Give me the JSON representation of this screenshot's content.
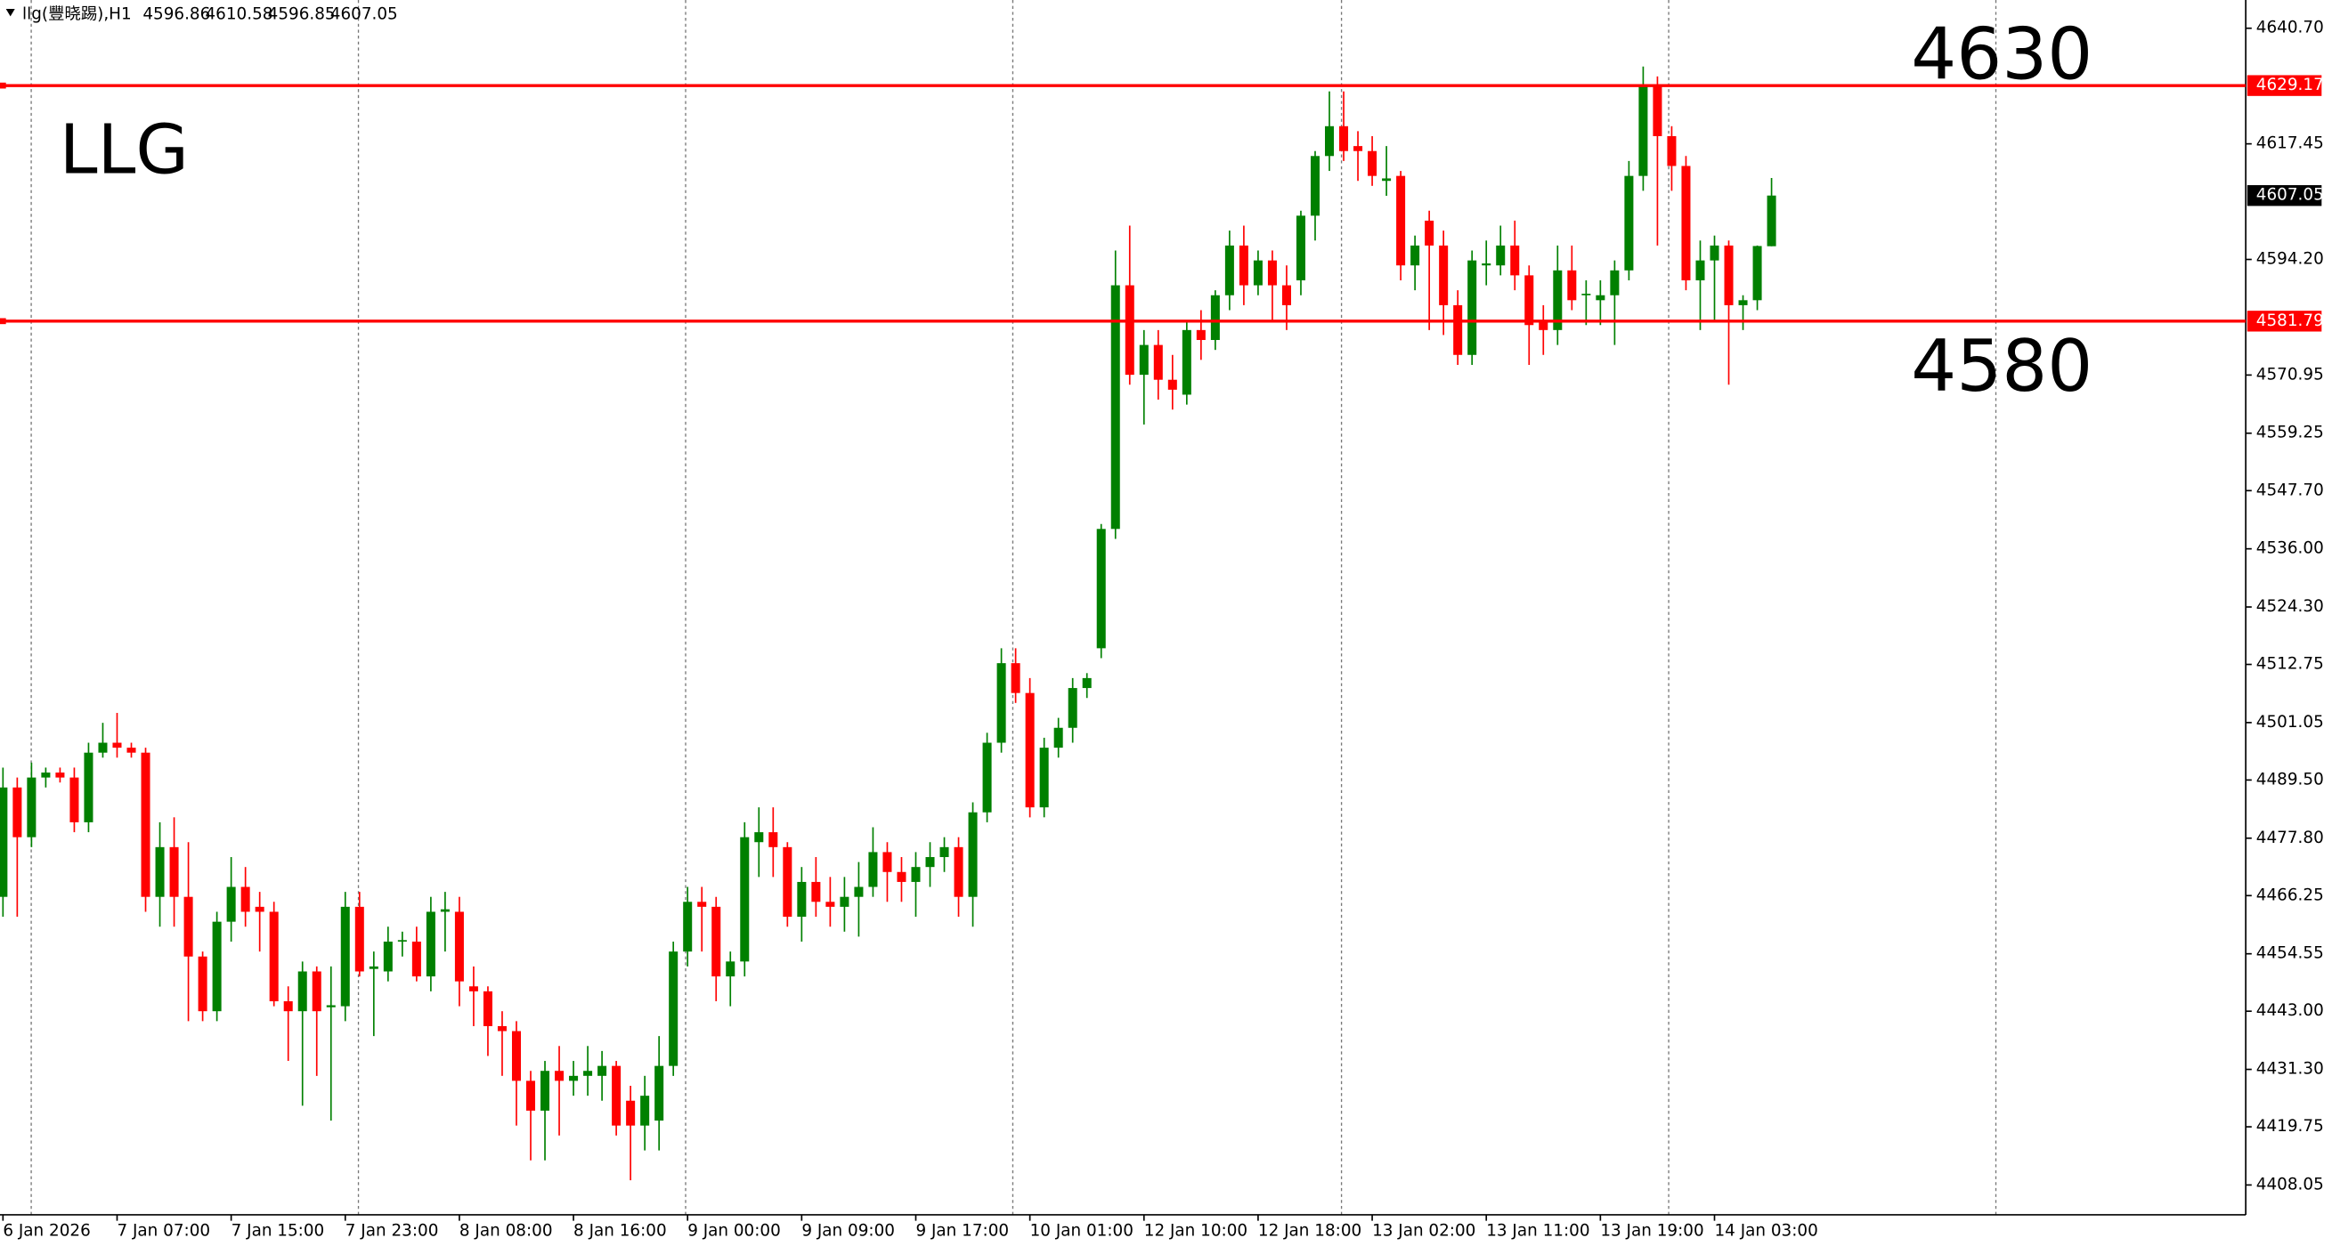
{
  "chart_data": {
    "type": "candlestick",
    "symbol": "llg(豐晓踢),H1",
    "annotations": [
      "LLG",
      "4630",
      "4580"
    ],
    "hlines": [
      4629.17,
      4581.79
    ],
    "hline_color": "#ff0000",
    "up_color": "#008000",
    "down_color": "#ff0000",
    "categories": [
      "6 Jan 2026",
      null,
      null,
      null,
      null,
      null,
      null,
      null,
      "7 Jan 07:00",
      null,
      null,
      null,
      null,
      null,
      null,
      null,
      "7 Jan 15:00",
      null,
      null,
      null,
      null,
      null,
      null,
      null,
      "7 Jan 23:00",
      null,
      null,
      null,
      null,
      null,
      null,
      null,
      "8 Jan 08:00",
      null,
      null,
      null,
      null,
      null,
      null,
      null,
      "8 Jan 16:00",
      null,
      null,
      null,
      null,
      null,
      null,
      null,
      "9 Jan 00:00",
      null,
      null,
      null,
      null,
      null,
      null,
      null,
      "9 Jan 09:00",
      null,
      null,
      null,
      null,
      null,
      null,
      null,
      "9 Jan 17:00",
      null,
      null,
      null,
      null,
      null,
      null,
      null,
      "10 Jan 01:00",
      null,
      null,
      null,
      null,
      null,
      null,
      null,
      "12 Jan 10:00",
      null,
      null,
      null,
      null,
      null,
      null,
      null,
      "12 Jan 18:00",
      null,
      null,
      null,
      null,
      null,
      null,
      null,
      "13 Jan 02:00",
      null,
      null,
      null,
      null,
      null,
      null,
      null,
      "13 Jan 11:00",
      null,
      null,
      null,
      null,
      null,
      null,
      null,
      "13 Jan 19:00",
      null,
      null,
      null,
      null,
      null,
      null,
      null,
      "14 Jan 03:00",
      null,
      null,
      null,
      null
    ],
    "open": [
      4466,
      4488,
      4478,
      4490,
      4491,
      4490,
      4481,
      4495,
      4497,
      4496,
      4495,
      4466,
      4476,
      4466,
      4454,
      4443,
      4461,
      4468,
      4464,
      4463,
      4445,
      4443,
      4451,
      4443.8,
      4444,
      4464,
      4451.5,
      4451,
      4457,
      4457,
      4450,
      4463,
      4463,
      4448,
      4447,
      4440,
      4439,
      4429,
      4423,
      4431,
      4429,
      4430,
      4430,
      4432,
      4425,
      4420,
      4421,
      4432,
      4455,
      4465,
      4464,
      4450,
      4453,
      4477,
      4479,
      4476,
      4462,
      4469,
      4465,
      4464,
      4466,
      4468,
      4475,
      4471,
      4469,
      4472,
      4474,
      4476,
      4466,
      4483,
      4497,
      4513,
      4507,
      4484,
      4496,
      4500,
      4508,
      4516,
      4540,
      4589,
      4571,
      4577,
      4570,
      4567,
      4580,
      4578,
      4587,
      4597,
      4589,
      4594,
      4589,
      4590,
      4603,
      4615,
      4621,
      4617,
      4616,
      4610,
      4611,
      4593,
      4602,
      4597,
      4585,
      4575,
      4593,
      4593,
      4597,
      4591,
      4582,
      4580,
      4592,
      4587,
      4586,
      4587,
      4592,
      4611,
      4629,
      4619,
      4613,
      4590,
      4594,
      4597,
      4585,
      4586,
      4596.86
    ],
    "high": [
      4492,
      4490,
      4493,
      4492,
      4492,
      4492,
      4497,
      4501,
      4503,
      4497,
      4496,
      4481,
      4482,
      4477,
      4455,
      4463,
      4474,
      4472,
      4467,
      4465,
      4448,
      4453,
      4452,
      4452,
      4467,
      4467,
      4455,
      4460,
      4459,
      4460,
      4466,
      4467,
      4466,
      4452,
      4448,
      4443,
      4441,
      4431,
      4433,
      4436,
      4433,
      4436,
      4435,
      4433,
      4428,
      4430,
      4438,
      4457,
      4468,
      4468,
      4466,
      4455,
      4481,
      4484,
      4484,
      4477,
      4472,
      4474,
      4470,
      4470,
      4473,
      4480,
      4477,
      4474,
      4475,
      4477,
      4478,
      4478,
      4485,
      4499,
      4516,
      4516,
      4510,
      4498,
      4502,
      4510,
      4511,
      4541,
      4596,
      4601,
      4580,
      4580,
      4575,
      4582,
      4584,
      4588,
      4600,
      4601,
      4596,
      4596,
      4593,
      4604,
      4616,
      4628,
      4628,
      4620,
      4619,
      4617,
      4612,
      4599,
      4604,
      4600,
      4588,
      4596,
      4598,
      4601,
      4602,
      4593,
      4585,
      4597,
      4597,
      4590,
      4590,
      4594,
      4614,
      4633,
      4631,
      4621,
      4615,
      4598,
      4599,
      4598,
      4587,
      4597,
      4610.58
    ],
    "low": [
      4462,
      4462,
      4476,
      4488,
      4489,
      4479,
      4479,
      4494,
      4494,
      4494,
      4463,
      4460,
      4460,
      4441,
      4441,
      4441,
      4457,
      4460,
      4455,
      4444,
      4433,
      4424,
      4430,
      4421,
      4441,
      4450,
      4438,
      4449,
      4454,
      4449,
      4447,
      4455,
      4444,
      4440,
      4434,
      4430,
      4420,
      4413,
      4413,
      4418,
      4426,
      4426,
      4425,
      4418,
      4409,
      4415,
      4415,
      4430,
      4452,
      4455,
      4445,
      4444,
      4450,
      4470,
      4470,
      4460,
      4457,
      4462,
      4460,
      4459,
      4458,
      4466,
      4465,
      4465,
      4462,
      4468,
      4471,
      4462,
      4460,
      4481,
      4495,
      4505,
      4482,
      4482,
      4494,
      4497,
      4506,
      4514,
      4538,
      4569,
      4561,
      4566,
      4564,
      4565,
      4574,
      4576,
      4584,
      4585,
      4587,
      4582,
      4580,
      4587,
      4598,
      4612,
      4614,
      4610,
      4609,
      4607,
      4590,
      4588,
      4580,
      4579,
      4573,
      4573,
      4589,
      4591,
      4588,
      4573,
      4575,
      4577,
      4584,
      4581,
      4581,
      4577,
      4590,
      4608,
      4597,
      4608,
      4588,
      4580,
      4582,
      4569,
      4580,
      4584,
      4596.85
    ],
    "close": [
      4488,
      4478,
      4490,
      4491,
      4490,
      4481,
      4495,
      4497,
      4496,
      4495,
      4466,
      4476,
      4466,
      4454,
      4443,
      4461,
      4468,
      4463,
      4463,
      4445,
      4443,
      4451,
      4443,
      4444.2,
      4464,
      4451,
      4452,
      4457,
      4457.3,
      4450,
      4463,
      4463.5,
      4449,
      4447,
      4440,
      4439,
      4429,
      4423,
      4431,
      4429,
      4430,
      4431,
      4432,
      4420,
      4420,
      4426,
      4432,
      4455,
      4465,
      4464,
      4450,
      4453,
      4478,
      4479,
      4476,
      4462,
      4469,
      4465,
      4464,
      4466,
      4468,
      4475,
      4471,
      4469,
      4472,
      4474,
      4476,
      4466,
      4483,
      4497,
      4513,
      4507,
      4484,
      4496,
      4500,
      4508,
      4510,
      4540,
      4589,
      4571,
      4577,
      4570,
      4568,
      4580,
      4578,
      4587,
      4597,
      4589,
      4594,
      4589,
      4585,
      4603,
      4615,
      4621,
      4616,
      4616,
      4611,
      4610.5,
      4593,
      4597,
      4597,
      4585,
      4575,
      4594,
      4593.4,
      4597,
      4591,
      4581,
      4580,
      4592,
      4586,
      4587.3,
      4587,
      4592,
      4611,
      4629,
      4619,
      4613,
      4590,
      4594,
      4597,
      4585,
      4586,
      4596.9,
      4607.05
    ],
    "ylim": [
      4402.05,
      4646.38
    ],
    "yticks": [
      {
        "value": 4640.7,
        "label": "4640.70"
      },
      4617.45,
      {
        "value": 4594.2,
        "label": "4594.20"
      },
      4570.95,
      4559.25,
      {
        "value": 4547.7,
        "label": "4547.70"
      },
      {
        "value": 4536.0,
        "label": "4536.00"
      },
      {
        "value": 4524.3,
        "label": "4524.30"
      },
      4512.75,
      4501.05,
      {
        "value": 4489.5,
        "label": "4489.50"
      },
      {
        "value": 4477.8,
        "label": "4477.80"
      },
      4466.25,
      4454.55,
      {
        "value": 4443.0,
        "label": "4443.00"
      },
      {
        "value": 4431.3,
        "label": "4431.30"
      },
      4419.75,
      4408.05
    ]
  }
}
